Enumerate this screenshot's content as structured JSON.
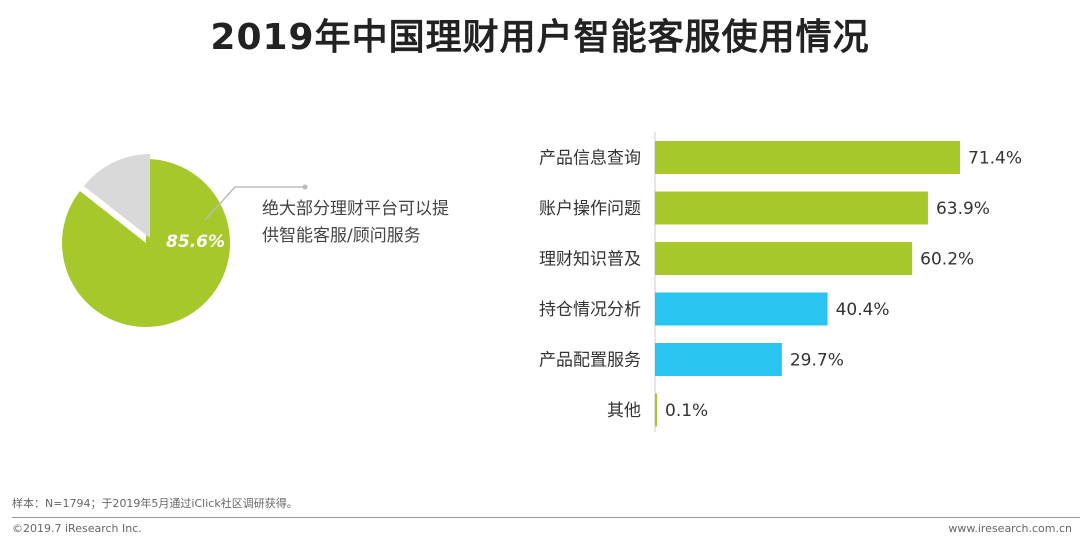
{
  "title": "2019年中国理财用户智能客服使用情况",
  "chart_data": [
    {
      "type": "pie",
      "slices": [
        {
          "label": "85.6%",
          "value": 85.6,
          "color": "#a6c82b"
        },
        {
          "label": "",
          "value": 14.4,
          "color": "#d9d9d9"
        }
      ],
      "annotation": "绝大部分理财平台可以提供智能客服/顾问服务"
    },
    {
      "type": "bar",
      "orientation": "horizontal",
      "categories": [
        "产品信息查询",
        "账户操作问题",
        "理财知识普及",
        "持仓情况分析",
        "产品配置服务",
        "其他"
      ],
      "values": [
        71.4,
        63.9,
        60.2,
        40.4,
        29.7,
        0.1
      ],
      "value_labels": [
        "71.4%",
        "63.9%",
        "60.2%",
        "40.4%",
        "29.7%",
        "0.1%"
      ],
      "colors": [
        "#a6c82b",
        "#a6c82b",
        "#a6c82b",
        "#29c4ef",
        "#29c4ef",
        "#a6c82b"
      ]
    }
  ],
  "footer": {
    "note": "样本：N=1794；于2019年5月通过iClick社区调研获得。",
    "copyright": "©2019.7 iResearch Inc.",
    "url": "www.iresearch.com.cn"
  }
}
